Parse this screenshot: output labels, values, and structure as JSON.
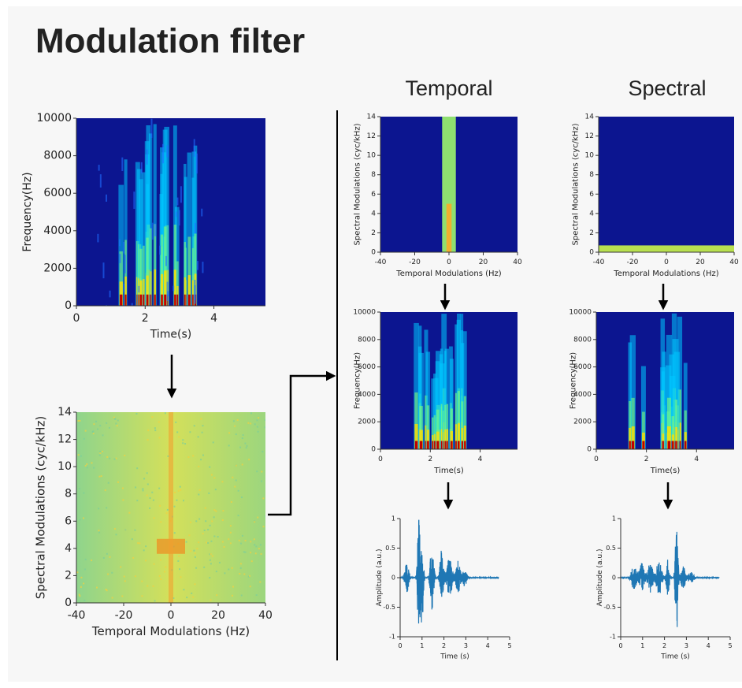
{
  "title": "Modulation filter",
  "columns": [
    "Temporal",
    "Spectral"
  ],
  "panels": [
    {
      "xlabel": "Time(s)",
      "ylabel": "Frequency(Hz)",
      "xlim": [
        0,
        5.5
      ],
      "ylim": [
        0,
        10000
      ],
      "xticks": [
        0,
        2,
        4
      ],
      "yticks": [
        0,
        2000,
        4000,
        6000,
        8000,
        10000
      ]
    },
    {
      "xlabel": "Temporal Modulations (Hz)",
      "ylabel": "Spectral Modulations (cyc/kHz)",
      "xlim": [
        -40,
        40
      ],
      "ylim": [
        0,
        14
      ],
      "xticks": [
        -40,
        -20,
        0,
        20,
        40
      ],
      "yticks": [
        0,
        2,
        4,
        6,
        8,
        10,
        12,
        14
      ]
    },
    {
      "xlabel": "Temporal Modulations (Hz)",
      "ylabel": "Spectral Modulations (cyc/kHz)",
      "xlim": [
        -40,
        40
      ],
      "ylim": [
        0,
        14
      ],
      "xticks": [
        -40,
        -20,
        0,
        20,
        40
      ],
      "yticks": [
        0,
        2,
        4,
        6,
        8,
        10,
        12,
        14
      ]
    },
    {
      "xlabel": "Temporal Modulations (Hz)",
      "ylabel": "Spectral Modulations (cyc/kHz)",
      "xlim": [
        -40,
        40
      ],
      "ylim": [
        0,
        14
      ],
      "xticks": [
        -40,
        -20,
        0,
        20,
        40
      ],
      "yticks": [
        0,
        2,
        4,
        6,
        8,
        10,
        12,
        14
      ]
    },
    {
      "xlabel": "Time(s)",
      "ylabel": "Frequency(Hz)",
      "xlim": [
        0,
        5.5
      ],
      "ylim": [
        0,
        10000
      ],
      "xticks": [
        0,
        2,
        4
      ],
      "yticks": [
        0,
        2000,
        4000,
        6000,
        8000,
        10000
      ]
    },
    {
      "xlabel": "Time(s)",
      "ylabel": "Frequency(Hz)",
      "xlim": [
        0,
        5.5
      ],
      "ylim": [
        0,
        10000
      ],
      "xticks": [
        0,
        2,
        4
      ],
      "yticks": [
        0,
        2000,
        4000,
        6000,
        8000,
        10000
      ]
    },
    {
      "xlabel": "Time (s)",
      "ylabel": "Amplitude (a.u.)",
      "xlim": [
        0,
        5
      ],
      "ylim": [
        -1,
        1
      ],
      "xticks": [
        0,
        1,
        2,
        3,
        4,
        5
      ],
      "yticks": [
        -1,
        -0.5,
        0,
        0.5,
        1
      ]
    },
    {
      "xlabel": "Time (s)",
      "ylabel": "Amplitude (a.u.)",
      "xlim": [
        0,
        5
      ],
      "ylim": [
        -1,
        1
      ],
      "xticks": [
        0,
        1,
        2,
        3,
        4,
        5
      ],
      "yticks": [
        -1,
        -0.5,
        0,
        0.5,
        1
      ]
    }
  ]
}
